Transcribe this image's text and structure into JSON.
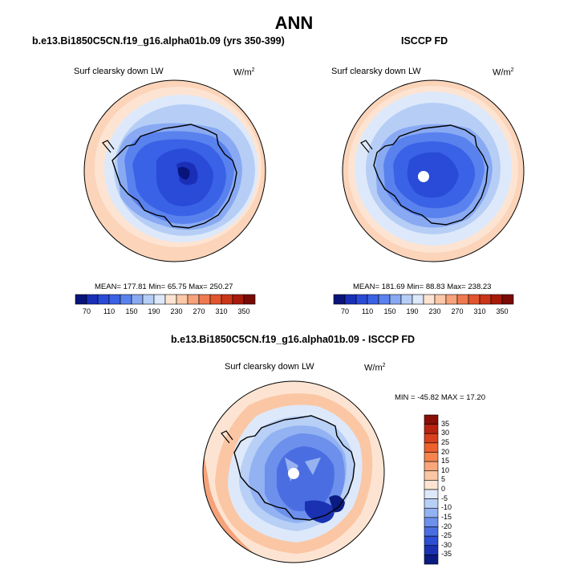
{
  "title": "ANN",
  "panels": [
    {
      "title": "b.e13.Bi1850C5CN.f19_g16.alpha01b.09 (yrs 350-399)",
      "varname": "Surf clearsky down LW",
      "units_base": "W/m",
      "units_exp": "2",
      "stats": "MEAN= 177.81  Min=  65.75  Max= 250.27"
    },
    {
      "title": "ISCCP FD",
      "varname": "Surf clearsky down LW",
      "units_base": "W/m",
      "units_exp": "2",
      "stats": "MEAN= 181.69  Min=  88.83  Max= 238.23"
    },
    {
      "title": "b.e13.Bi1850C5CN.f19_g16.alpha01b.09 - ISCCP FD",
      "varname": "Surf clearsky down LW",
      "units_base": "W/m",
      "units_exp": "2",
      "stats": "MIN = -45.82 MAX =  17.20"
    }
  ],
  "colorbar_abs": {
    "tick_labels": [
      "70",
      "110",
      "150",
      "190",
      "230",
      "270",
      "310",
      "350"
    ],
    "colors": [
      "#08147a",
      "#1a2fb8",
      "#2a4ad8",
      "#3a62e6",
      "#5a82ee",
      "#89aaf2",
      "#b6cef6",
      "#dde9fa",
      "#fde4d2",
      "#fbc8a8",
      "#f6a27a",
      "#ef7a50",
      "#e2552e",
      "#cb3518",
      "#a81a0a",
      "#7a0a04"
    ]
  },
  "colorbar_diff": {
    "tick_labels": [
      "35",
      "30",
      "25",
      "20",
      "15",
      "10",
      "5",
      "0",
      "-5",
      "-10",
      "-15",
      "-20",
      "-25",
      "-30",
      "-35"
    ],
    "colors": [
      "#8a0e06",
      "#b8220e",
      "#d8401e",
      "#ee602e",
      "#f6844e",
      "#f9a77a",
      "#fbc6a4",
      "#fde4d2",
      "#dde9fa",
      "#b8cff6",
      "#92b2f2",
      "#6c90ec",
      "#4a6ee2",
      "#2e4ed4",
      "#1a32b2",
      "#0a1c82"
    ]
  },
  "chart_data": [
    {
      "type": "heatmap",
      "title": "b.e13.Bi1850C5CN.f19_g16.alpha01b.09 (yrs 350-399)",
      "variable": "Surf clearsky down LW",
      "units": "W/m2",
      "projection": "south polar stereographic",
      "mean": 177.81,
      "min": 65.75,
      "max": 250.27,
      "levels": [
        70,
        90,
        110,
        130,
        150,
        170,
        190,
        210,
        230,
        250,
        270,
        290,
        310,
        330,
        350
      ]
    },
    {
      "type": "heatmap",
      "title": "ISCCP FD",
      "variable": "Surf clearsky down LW",
      "units": "W/m2",
      "projection": "south polar stereographic",
      "mean": 181.69,
      "min": 88.83,
      "max": 238.23,
      "levels": [
        70,
        90,
        110,
        130,
        150,
        170,
        190,
        210,
        230,
        250,
        270,
        290,
        310,
        330,
        350
      ]
    },
    {
      "type": "heatmap",
      "title": "b.e13.Bi1850C5CN.f19_g16.alpha01b.09 - ISCCP FD",
      "variable": "Surf clearsky down LW",
      "units": "W/m2",
      "projection": "south polar stereographic",
      "min": -45.82,
      "max": 17.2,
      "levels": [
        -35,
        -30,
        -25,
        -20,
        -15,
        -10,
        -5,
        0,
        5,
        10,
        15,
        20,
        25,
        30,
        35
      ]
    }
  ]
}
